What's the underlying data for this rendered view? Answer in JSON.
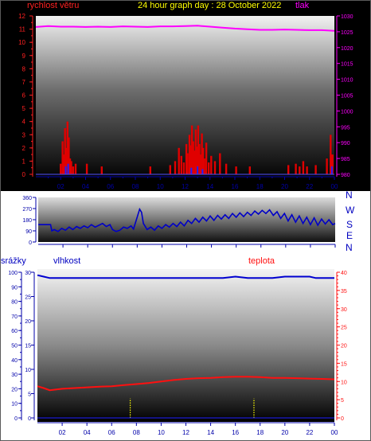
{
  "header": {
    "left_label": "rychlost větru",
    "title": "24 hour graph day : 28 October 2022",
    "right_label": "tlak"
  },
  "middle": {
    "compass": [
      "N",
      "W",
      "S",
      "E",
      "N"
    ]
  },
  "bottom": {
    "left_label": "srážky",
    "mid_label": "vlhkost",
    "right_label": "teplota"
  },
  "colors": {
    "wind_labels": "#ff2020",
    "pressure": "#ff00ff",
    "title": "#ffff00",
    "direction": "#0000c8",
    "humidity": "#0000d0",
    "temperature": "#ff1010",
    "rain": "#ffff00",
    "axis_text_blue": "#0000c0",
    "tick_text_blue": "#0000aa"
  },
  "chart_data": [
    {
      "type": "bar",
      "name": "wind",
      "x_ticks": [
        "02",
        "04",
        "06",
        "08",
        "10",
        "12",
        "14",
        "16",
        "18",
        "20",
        "22",
        "00"
      ],
      "ylim_left": [
        0,
        12
      ],
      "yticks_left": [
        "0",
        "1",
        "2",
        "3",
        "4",
        "5",
        "6",
        "7",
        "8",
        "9",
        "10",
        "11",
        "12"
      ],
      "ylim_right": [
        980,
        1030
      ],
      "yticks_right": [
        "980",
        "985",
        "990",
        "995",
        "1000",
        "1005",
        "1010",
        "1015",
        "1020",
        "1025",
        "1030"
      ],
      "gust_bars": [
        {
          "x": 2.0,
          "v": 0.8
        },
        {
          "x": 2.15,
          "v": 2.5
        },
        {
          "x": 2.25,
          "v": 1.5
        },
        {
          "x": 2.35,
          "v": 3.5
        },
        {
          "x": 2.45,
          "v": 2.0
        },
        {
          "x": 2.55,
          "v": 4.0
        },
        {
          "x": 2.65,
          "v": 2.8
        },
        {
          "x": 2.75,
          "v": 1.2
        },
        {
          "x": 2.85,
          "v": 1.0
        },
        {
          "x": 3.0,
          "v": 0.6
        },
        {
          "x": 3.2,
          "v": 0.8
        },
        {
          "x": 4.1,
          "v": 0.8
        },
        {
          "x": 5.3,
          "v": 0.6
        },
        {
          "x": 9.2,
          "v": 0.6
        },
        {
          "x": 10.8,
          "v": 0.7
        },
        {
          "x": 11.2,
          "v": 1.0
        },
        {
          "x": 11.5,
          "v": 2.0
        },
        {
          "x": 11.7,
          "v": 1.4
        },
        {
          "x": 11.9,
          "v": 0.9
        },
        {
          "x": 12.1,
          "v": 2.3
        },
        {
          "x": 12.2,
          "v": 1.6
        },
        {
          "x": 12.35,
          "v": 3.0
        },
        {
          "x": 12.45,
          "v": 2.2
        },
        {
          "x": 12.55,
          "v": 3.7
        },
        {
          "x": 12.65,
          "v": 2.5
        },
        {
          "x": 12.75,
          "v": 1.8
        },
        {
          "x": 12.85,
          "v": 3.4
        },
        {
          "x": 12.95,
          "v": 2.1
        },
        {
          "x": 13.05,
          "v": 3.7
        },
        {
          "x": 13.15,
          "v": 2.3
        },
        {
          "x": 13.25,
          "v": 1.5
        },
        {
          "x": 13.35,
          "v": 3.1
        },
        {
          "x": 13.45,
          "v": 2.0
        },
        {
          "x": 13.55,
          "v": 1.2
        },
        {
          "x": 13.7,
          "v": 2.4
        },
        {
          "x": 13.9,
          "v": 0.9
        },
        {
          "x": 14.1,
          "v": 1.4
        },
        {
          "x": 14.4,
          "v": 1.0
        },
        {
          "x": 14.8,
          "v": 1.6
        },
        {
          "x": 15.3,
          "v": 0.8
        },
        {
          "x": 16.1,
          "v": 0.6
        },
        {
          "x": 17.2,
          "v": 0.6
        },
        {
          "x": 20.3,
          "v": 0.7
        },
        {
          "x": 20.9,
          "v": 0.8
        },
        {
          "x": 21.2,
          "v": 0.6
        },
        {
          "x": 21.5,
          "v": 1.0
        },
        {
          "x": 21.8,
          "v": 0.6
        },
        {
          "x": 22.5,
          "v": 0.7
        },
        {
          "x": 23.4,
          "v": 1.2
        },
        {
          "x": 23.7,
          "v": 3.0
        },
        {
          "x": 23.85,
          "v": 1.5
        }
      ],
      "avg_bars": [
        {
          "x": 2.4,
          "v": 0.6
        },
        {
          "x": 2.6,
          "v": 0.8
        },
        {
          "x": 12.5,
          "v": 0.5
        },
        {
          "x": 13.0,
          "v": 0.6
        },
        {
          "x": 13.4,
          "v": 0.4
        },
        {
          "x": 23.8,
          "v": 0.6
        }
      ],
      "pressure": [
        {
          "x": 0,
          "v": 1026.5
        },
        {
          "x": 1,
          "v": 1026.8
        },
        {
          "x": 2,
          "v": 1026.6
        },
        {
          "x": 3,
          "v": 1026.6
        },
        {
          "x": 4,
          "v": 1026.5
        },
        {
          "x": 5,
          "v": 1026.6
        },
        {
          "x": 6,
          "v": 1026.5
        },
        {
          "x": 7,
          "v": 1026.7
        },
        {
          "x": 8,
          "v": 1026.6
        },
        {
          "x": 9,
          "v": 1026.5
        },
        {
          "x": 10,
          "v": 1026.7
        },
        {
          "x": 11,
          "v": 1026.7
        },
        {
          "x": 12,
          "v": 1026.8
        },
        {
          "x": 13,
          "v": 1026.9
        },
        {
          "x": 14,
          "v": 1026.6
        },
        {
          "x": 15,
          "v": 1026.3
        },
        {
          "x": 16,
          "v": 1026.0
        },
        {
          "x": 17,
          "v": 1025.8
        },
        {
          "x": 18,
          "v": 1025.6
        },
        {
          "x": 19,
          "v": 1025.6
        },
        {
          "x": 20,
          "v": 1025.7
        },
        {
          "x": 21,
          "v": 1025.6
        },
        {
          "x": 22,
          "v": 1025.5
        },
        {
          "x": 23,
          "v": 1025.5
        },
        {
          "x": 24,
          "v": 1025.3
        }
      ]
    },
    {
      "type": "line",
      "name": "direction",
      "x_ticks": [
        "02",
        "04",
        "06",
        "08",
        "10",
        "12",
        "14",
        "16",
        "18",
        "20",
        "22",
        "00"
      ],
      "ylim": [
        0,
        360
      ],
      "yticks": [
        "0",
        "90",
        "180",
        "270",
        "360"
      ],
      "compass": [
        "N",
        "W",
        "S",
        "E",
        "N"
      ],
      "points": [
        {
          "x": 0.0,
          "v": 140
        },
        {
          "x": 0.5,
          "v": 140
        },
        {
          "x": 1.0,
          "v": 140
        },
        {
          "x": 1.1,
          "v": 90
        },
        {
          "x": 1.3,
          "v": 100
        },
        {
          "x": 1.6,
          "v": 85
        },
        {
          "x": 1.9,
          "v": 110
        },
        {
          "x": 2.2,
          "v": 95
        },
        {
          "x": 2.5,
          "v": 120
        },
        {
          "x": 2.8,
          "v": 100
        },
        {
          "x": 3.1,
          "v": 125
        },
        {
          "x": 3.4,
          "v": 110
        },
        {
          "x": 3.7,
          "v": 130
        },
        {
          "x": 4.0,
          "v": 115
        },
        {
          "x": 4.3,
          "v": 140
        },
        {
          "x": 4.6,
          "v": 120
        },
        {
          "x": 4.9,
          "v": 135
        },
        {
          "x": 5.2,
          "v": 150
        },
        {
          "x": 5.5,
          "v": 125
        },
        {
          "x": 5.8,
          "v": 140
        },
        {
          "x": 6.0,
          "v": 100
        },
        {
          "x": 6.3,
          "v": 85
        },
        {
          "x": 6.6,
          "v": 95
        },
        {
          "x": 6.9,
          "v": 120
        },
        {
          "x": 7.2,
          "v": 110
        },
        {
          "x": 7.5,
          "v": 130
        },
        {
          "x": 7.7,
          "v": 105
        },
        {
          "x": 8.0,
          "v": 200
        },
        {
          "x": 8.2,
          "v": 265
        },
        {
          "x": 8.35,
          "v": 240
        },
        {
          "x": 8.5,
          "v": 150
        },
        {
          "x": 8.8,
          "v": 100
        },
        {
          "x": 9.1,
          "v": 120
        },
        {
          "x": 9.4,
          "v": 95
        },
        {
          "x": 9.7,
          "v": 130
        },
        {
          "x": 10.0,
          "v": 110
        },
        {
          "x": 10.3,
          "v": 140
        },
        {
          "x": 10.6,
          "v": 120
        },
        {
          "x": 10.9,
          "v": 150
        },
        {
          "x": 11.2,
          "v": 125
        },
        {
          "x": 11.5,
          "v": 160
        },
        {
          "x": 11.8,
          "v": 130
        },
        {
          "x": 12.1,
          "v": 175
        },
        {
          "x": 12.4,
          "v": 150
        },
        {
          "x": 12.7,
          "v": 190
        },
        {
          "x": 13.0,
          "v": 160
        },
        {
          "x": 13.3,
          "v": 200
        },
        {
          "x": 13.6,
          "v": 170
        },
        {
          "x": 13.9,
          "v": 210
        },
        {
          "x": 14.2,
          "v": 175
        },
        {
          "x": 14.5,
          "v": 215
        },
        {
          "x": 14.8,
          "v": 185
        },
        {
          "x": 15.1,
          "v": 220
        },
        {
          "x": 15.4,
          "v": 190
        },
        {
          "x": 15.7,
          "v": 230
        },
        {
          "x": 16.0,
          "v": 200
        },
        {
          "x": 16.3,
          "v": 235
        },
        {
          "x": 16.6,
          "v": 205
        },
        {
          "x": 16.9,
          "v": 240
        },
        {
          "x": 17.2,
          "v": 215
        },
        {
          "x": 17.5,
          "v": 250
        },
        {
          "x": 17.8,
          "v": 225
        },
        {
          "x": 18.1,
          "v": 255
        },
        {
          "x": 18.4,
          "v": 230
        },
        {
          "x": 18.7,
          "v": 260
        },
        {
          "x": 19.0,
          "v": 215
        },
        {
          "x": 19.3,
          "v": 245
        },
        {
          "x": 19.6,
          "v": 190
        },
        {
          "x": 19.9,
          "v": 230
        },
        {
          "x": 20.2,
          "v": 170
        },
        {
          "x": 20.5,
          "v": 220
        },
        {
          "x": 20.8,
          "v": 160
        },
        {
          "x": 21.1,
          "v": 210
        },
        {
          "x": 21.4,
          "v": 150
        },
        {
          "x": 21.7,
          "v": 200
        },
        {
          "x": 22.0,
          "v": 140
        },
        {
          "x": 22.3,
          "v": 195
        },
        {
          "x": 22.6,
          "v": 135
        },
        {
          "x": 22.9,
          "v": 185
        },
        {
          "x": 23.2,
          "v": 145
        },
        {
          "x": 23.5,
          "v": 180
        },
        {
          "x": 23.8,
          "v": 140
        },
        {
          "x": 24.0,
          "v": 150
        }
      ]
    },
    {
      "type": "line",
      "name": "humidity_temperature_rain",
      "x_ticks": [
        "02",
        "04",
        "06",
        "08",
        "10",
        "12",
        "14",
        "16",
        "18",
        "20",
        "22",
        "00"
      ],
      "ylim_left": [
        0,
        100
      ],
      "yticks_left": [
        "0",
        "10",
        "20",
        "30",
        "40",
        "50",
        "60",
        "70",
        "80",
        "90",
        "100"
      ],
      "ylim_inner": [
        0,
        30
      ],
      "yticks_inner": [
        "0",
        "5",
        "10",
        "15",
        "20",
        "25",
        "30"
      ],
      "ylim_right": [
        0,
        40
      ],
      "yticks_right": [
        "0",
        "5",
        "10",
        "15",
        "20",
        "25",
        "30",
        "35",
        "40"
      ],
      "humidity": [
        {
          "x": 0,
          "v": 98
        },
        {
          "x": 0.5,
          "v": 97
        },
        {
          "x": 1.0,
          "v": 96
        },
        {
          "x": 4,
          "v": 96
        },
        {
          "x": 8,
          "v": 96
        },
        {
          "x": 12,
          "v": 96
        },
        {
          "x": 15,
          "v": 96
        },
        {
          "x": 16,
          "v": 97
        },
        {
          "x": 17,
          "v": 96
        },
        {
          "x": 19,
          "v": 96
        },
        {
          "x": 20,
          "v": 97
        },
        {
          "x": 22,
          "v": 97
        },
        {
          "x": 22.5,
          "v": 96
        },
        {
          "x": 24,
          "v": 96
        }
      ],
      "temperature": [
        {
          "x": 0,
          "v": 8.7
        },
        {
          "x": 0.5,
          "v": 8.2
        },
        {
          "x": 1.0,
          "v": 7.6
        },
        {
          "x": 2,
          "v": 8.0
        },
        {
          "x": 3,
          "v": 8.2
        },
        {
          "x": 4,
          "v": 8.4
        },
        {
          "x": 5,
          "v": 8.6
        },
        {
          "x": 6,
          "v": 8.7
        },
        {
          "x": 7,
          "v": 9.0
        },
        {
          "x": 8,
          "v": 9.3
        },
        {
          "x": 9,
          "v": 9.6
        },
        {
          "x": 10,
          "v": 10.0
        },
        {
          "x": 11,
          "v": 10.4
        },
        {
          "x": 12,
          "v": 10.7
        },
        {
          "x": 13,
          "v": 10.9
        },
        {
          "x": 14,
          "v": 11.0
        },
        {
          "x": 15,
          "v": 11.2
        },
        {
          "x": 16,
          "v": 11.3
        },
        {
          "x": 17,
          "v": 11.3
        },
        {
          "x": 18,
          "v": 11.2
        },
        {
          "x": 19,
          "v": 11.0
        },
        {
          "x": 20,
          "v": 11.0
        },
        {
          "x": 21,
          "v": 10.9
        },
        {
          "x": 22,
          "v": 10.8
        },
        {
          "x": 23,
          "v": 10.7
        },
        {
          "x": 24,
          "v": 10.6
        }
      ],
      "rain": [
        {
          "x": 7.5,
          "v": 4.0
        },
        {
          "x": 17.5,
          "v": 4.0
        }
      ]
    }
  ]
}
